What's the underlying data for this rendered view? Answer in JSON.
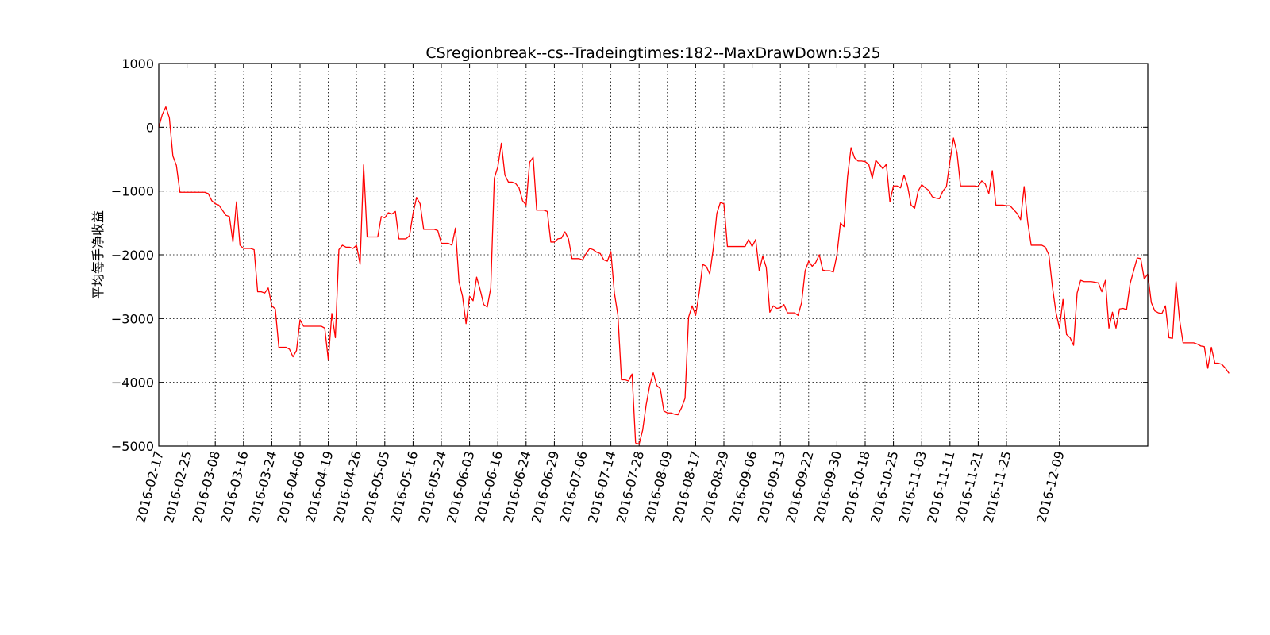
{
  "chart_data": {
    "type": "line",
    "title": "CSregionbreak--cs--Tradeingtimes:182--MaxDrawDown:5325",
    "xlabel": "",
    "ylabel": "平均每手净收益",
    "ylim": [
      -5000,
      1000
    ],
    "yticks": [
      1000,
      0,
      -1000,
      -2000,
      -3000,
      -4000,
      -5000
    ],
    "xtick_labels": [
      "2016-02-17",
      "2016-02-25",
      "2016-03-08",
      "2016-03-16",
      "2016-03-24",
      "2016-04-06",
      "2016-04-19",
      "2016-04-26",
      "2016-05-05",
      "2016-05-16",
      "2016-05-24",
      "2016-06-03",
      "2016-06-16",
      "2016-06-24",
      "2016-06-29",
      "2016-07-06",
      "2016-07-14",
      "2016-07-28",
      "2016-08-09",
      "2016-08-17",
      "2016-08-29",
      "2016-09-06",
      "2016-09-13",
      "2016-09-22",
      "2016-09-30",
      "2016-10-18",
      "2016-10-25",
      "2016-11-03",
      "2016-11-11",
      "2016-11-21",
      "2016-11-25",
      "2016-12-09"
    ],
    "xtick_index": [
      0,
      8,
      16,
      24,
      32,
      40,
      48,
      56,
      64,
      72,
      80,
      88,
      96,
      104,
      112,
      120,
      128,
      136,
      144,
      152,
      160,
      168,
      176,
      184,
      192,
      200,
      208,
      216,
      224,
      232,
      240,
      255
    ],
    "x_max_index": 280,
    "grid": true,
    "series": [
      {
        "color": "#ff0000",
        "values": [
          0,
          200,
          320,
          150,
          -450,
          -600,
          -1020,
          -1020,
          -1020,
          -1020,
          -1020,
          -1020,
          -1020,
          -1020,
          -1040,
          -1150,
          -1200,
          -1220,
          -1300,
          -1380,
          -1400,
          -1800,
          -1170,
          -1850,
          -1900,
          -1900,
          -1900,
          -1920,
          -2580,
          -2580,
          -2600,
          -2520,
          -2800,
          -2850,
          -3450,
          -3450,
          -3450,
          -3480,
          -3600,
          -3500,
          -3020,
          -3120,
          -3120,
          -3120,
          -3120,
          -3120,
          -3120,
          -3150,
          -3650,
          -2920,
          -3300,
          -1920,
          -1850,
          -1880,
          -1880,
          -1900,
          -1850,
          -2150,
          -590,
          -1720,
          -1720,
          -1720,
          -1720,
          -1400,
          -1420,
          -1340,
          -1360,
          -1320,
          -1750,
          -1750,
          -1750,
          -1700,
          -1350,
          -1100,
          -1200,
          -1600,
          -1600,
          -1600,
          -1600,
          -1620,
          -1820,
          -1820,
          -1820,
          -1850,
          -1580,
          -2420,
          -2650,
          -3080,
          -2650,
          -2720,
          -2350,
          -2550,
          -2780,
          -2820,
          -2520,
          -800,
          -620,
          -250,
          -750,
          -860,
          -860,
          -880,
          -950,
          -1150,
          -1220,
          -550,
          -470,
          -1300,
          -1300,
          -1300,
          -1320,
          -1800,
          -1800,
          -1750,
          -1740,
          -1640,
          -1750,
          -2060,
          -2060,
          -2060,
          -2080,
          -1980,
          -1900,
          -1920,
          -1960,
          -1980,
          -2080,
          -2100,
          -1950,
          -2600,
          -2950,
          -3960,
          -3960,
          -3980,
          -3870,
          -4950,
          -4970,
          -4750,
          -4350,
          -4050,
          -3850,
          -4050,
          -4100,
          -4450,
          -4480,
          -4480,
          -4500,
          -4510,
          -4400,
          -4250,
          -2980,
          -2800,
          -2950,
          -2600,
          -2150,
          -2180,
          -2300,
          -1900,
          -1350,
          -1180,
          -1200,
          -1870,
          -1870,
          -1870,
          -1870,
          -1870,
          -1870,
          -1760,
          -1870,
          -1760,
          -2250,
          -2020,
          -2200,
          -2900,
          -2800,
          -2840,
          -2830,
          -2780,
          -2910,
          -2910,
          -2910,
          -2950,
          -2750,
          -2250,
          -2100,
          -2180,
          -2120,
          -2000,
          -2240,
          -2250,
          -2250,
          -2270,
          -2000,
          -1500,
          -1560,
          -780,
          -320,
          -480,
          -530,
          -530,
          -540,
          -580,
          -800,
          -520,
          -580,
          -650,
          -580,
          -1170,
          -920,
          -920,
          -950,
          -750,
          -920,
          -1220,
          -1270,
          -1000,
          -900,
          -950,
          -990,
          -1090,
          -1110,
          -1120,
          -1000,
          -930,
          -530,
          -170,
          -400,
          -920,
          -920,
          -920,
          -920,
          -920,
          -930,
          -840,
          -890,
          -1040,
          -680,
          -1220,
          -1220,
          -1220,
          -1230,
          -1230,
          -1290,
          -1350,
          -1450,
          -930,
          -1480,
          -1850,
          -1850,
          -1850,
          -1850,
          -1880,
          -2000,
          -2500,
          -2900,
          -3150,
          -2700,
          -3250,
          -3300,
          -3420,
          -2600,
          -2400,
          -2420,
          -2420,
          -2420,
          -2430,
          -2440,
          -2580,
          -2400,
          -3150,
          -2900,
          -3150,
          -2850,
          -2840,
          -2860,
          -2450,
          -2250,
          -2050,
          -2060,
          -2380,
          -2300,
          -2750,
          -2880,
          -2910,
          -2920,
          -2800,
          -3300,
          -3310,
          -2420,
          -3020,
          -3380,
          -3380,
          -3380,
          -3380,
          -3400,
          -3430,
          -3440,
          -3780,
          -3450,
          -3700,
          -3700,
          -3720,
          -3780,
          -3860
        ]
      }
    ]
  }
}
